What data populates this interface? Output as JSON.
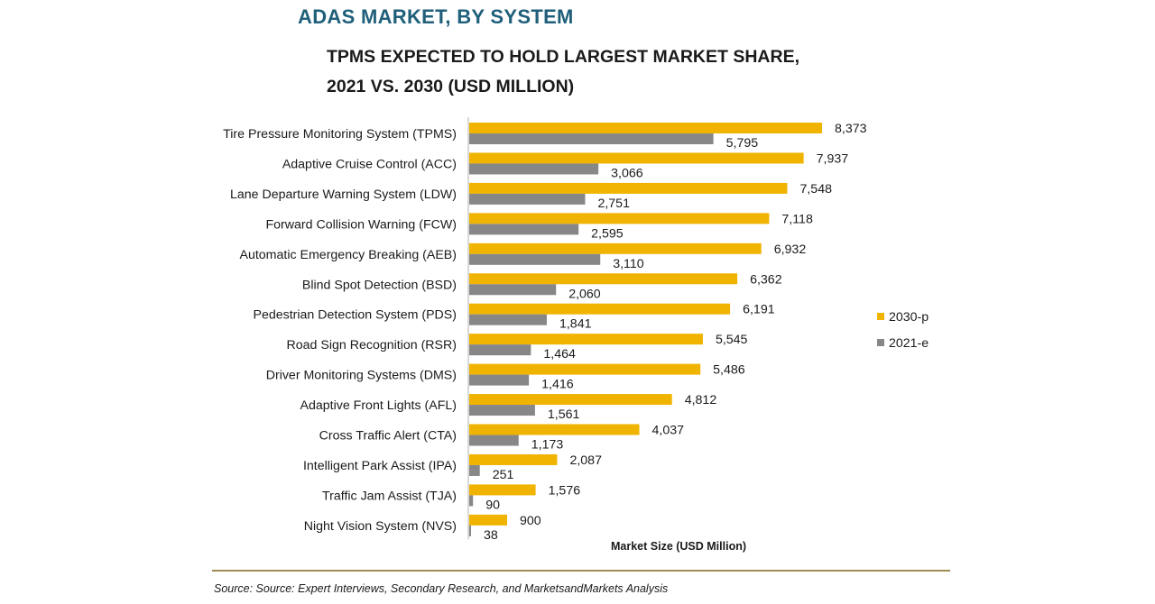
{
  "header": {
    "title": "ADAS MARKET, BY SYSTEM",
    "subtitle_line1": "TPMS EXPECTED TO HOLD LARGEST MARKET SHARE,",
    "subtitle_line2": "2021 VS. 2030 (USD MILLION)"
  },
  "footer": {
    "source": "Source: Source: Expert Interviews, Secondary Research, and MarketsandMarkets Analysis"
  },
  "colors": {
    "series_2030": "#f0b400",
    "series_2021": "#878787",
    "axis": "#bfbfbf"
  },
  "chart_data": {
    "type": "bar",
    "orientation": "horizontal",
    "title": "ADAS MARKET, BY SYSTEM",
    "subtitle": "TPMS EXPECTED TO HOLD LARGEST MARKET SHARE, 2021 VS. 2030 (USD MILLION)",
    "xlabel": "Market Size (USD Million)",
    "ylabel": "",
    "xlim": [
      0,
      9000
    ],
    "grid": false,
    "legend_position": "right",
    "categories": [
      "Tire Pressure Monitoring System (TPMS)",
      "Adaptive Cruise Control (ACC)",
      "Lane Departure Warning System (LDW)",
      "Forward Collision Warning (FCW)",
      "Automatic Emergency Breaking (AEB)",
      "Blind Spot Detection (BSD)",
      "Pedestrian Detection System (PDS)",
      "Road Sign Recognition (RSR)",
      "Driver Monitoring Systems (DMS)",
      "Adaptive Front Lights (AFL)",
      "Cross Traffic Alert (CTA)",
      "Intelligent Park Assist (IPA)",
      "Traffic Jam Assist (TJA)",
      "Night Vision System (NVS)"
    ],
    "series": [
      {
        "name": "2030-p",
        "values": [
          8373,
          7937,
          7548,
          7118,
          6932,
          6362,
          6191,
          5545,
          5486,
          4812,
          4037,
          2087,
          1576,
          900
        ],
        "labels": [
          "8,373",
          "7,937",
          "7,548",
          "7,118",
          "6,932",
          "6,362",
          "6,191",
          "5,545",
          "5,486",
          "4,812",
          "4,037",
          "2,087",
          "1,576",
          "900"
        ]
      },
      {
        "name": "2021-e",
        "values": [
          5795,
          3066,
          2751,
          2595,
          3110,
          2060,
          1841,
          1464,
          1416,
          1561,
          1173,
          251,
          90,
          38
        ],
        "labels": [
          "5,795",
          "3,066",
          "2,751",
          "2,595",
          "3,110",
          "2,060",
          "1,841",
          "1,464",
          "1,416",
          "1,561",
          "1,173",
          "251",
          "90",
          "38"
        ]
      }
    ]
  }
}
